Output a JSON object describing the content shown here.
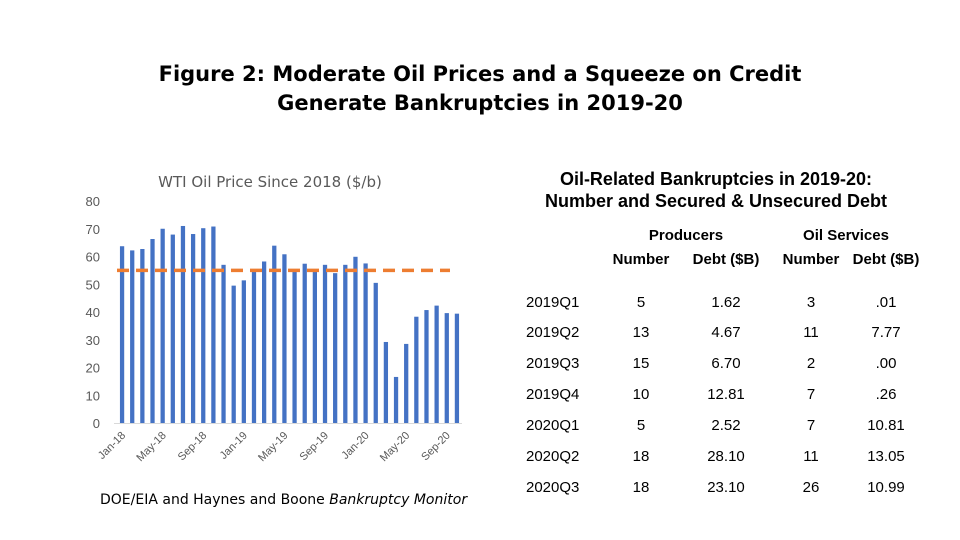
{
  "figure": {
    "title_line1": "Figure 2: Moderate Oil Prices and a Squeeze on Credit",
    "title_line2": "Generate Bankruptcies in 2019-20",
    "source_prefix": "DOE/EIA and Haynes and Boone ",
    "source_italic": "Bankruptcy Monitor"
  },
  "colors": {
    "bar": "#4472C4",
    "reference_line": "#ED7D31",
    "title_gray": "#595959",
    "axis_text": "#595959"
  },
  "chart_data": [
    {
      "type": "bar",
      "title": "WTI Oil Price Since 2018 ($/b)",
      "xlabel": "",
      "ylabel": "",
      "ylim": [
        0,
        80
      ],
      "yticks": [
        0,
        10,
        20,
        30,
        40,
        50,
        60,
        70,
        80
      ],
      "grid": false,
      "legend": "none",
      "categories": [
        "Jan-18",
        "Feb-18",
        "Mar-18",
        "Apr-18",
        "May-18",
        "Jun-18",
        "Jul-18",
        "Aug-18",
        "Sep-18",
        "Oct-18",
        "Nov-18",
        "Dec-18",
        "Jan-19",
        "Feb-19",
        "Mar-19",
        "Apr-19",
        "May-19",
        "Jun-19",
        "Jul-19",
        "Aug-19",
        "Sep-19",
        "Oct-19",
        "Nov-19",
        "Dec-19",
        "Jan-20",
        "Feb-20",
        "Mar-20",
        "Apr-20",
        "May-20",
        "Jun-20",
        "Jul-20",
        "Aug-20",
        "Sep-20",
        "Oct-20"
      ],
      "xtick_labels": [
        "Jan-18",
        "May-18",
        "Sep-18",
        "Jan-19",
        "May-19",
        "Sep-19",
        "Jan-20",
        "May-20",
        "Sep-20"
      ],
      "values": [
        63.7,
        62.2,
        62.7,
        66.3,
        70.0,
        67.9,
        71.0,
        68.1,
        70.2,
        70.8,
        57.0,
        49.5,
        51.4,
        54.9,
        58.2,
        63.9,
        60.8,
        54.7,
        57.4,
        54.8,
        57.0,
        54.0,
        57.0,
        59.9,
        57.5,
        50.5,
        29.2,
        16.6,
        28.5,
        38.3,
        40.7,
        42.3,
        39.6,
        39.4
      ],
      "reference_line": {
        "style": "dashed",
        "value": 55
      }
    },
    {
      "type": "table",
      "title_line1": "Oil-Related Bankruptcies in 2019-20:",
      "title_line2": "Number and Secured & Unsecured Debt",
      "group_headers": [
        "Producers",
        "Oil Services"
      ],
      "column_headers": [
        "Number",
        "Debt ($B)",
        "Number",
        "Debt ($B)"
      ],
      "rows": [
        [
          "2019Q1",
          "5",
          "1.62",
          "3",
          ".01"
        ],
        [
          "2019Q2",
          "13",
          "4.67",
          "11",
          "7.77"
        ],
        [
          "2019Q3",
          "15",
          "6.70",
          "2",
          ".00"
        ],
        [
          "2019Q4",
          "10",
          "12.81",
          "7",
          ".26"
        ],
        [
          "2020Q1",
          "5",
          "2.52",
          "7",
          "10.81"
        ],
        [
          "2020Q2",
          "18",
          "28.10",
          "11",
          "13.05"
        ],
        [
          "2020Q3",
          "18",
          "23.10",
          "26",
          "10.99"
        ]
      ]
    }
  ]
}
